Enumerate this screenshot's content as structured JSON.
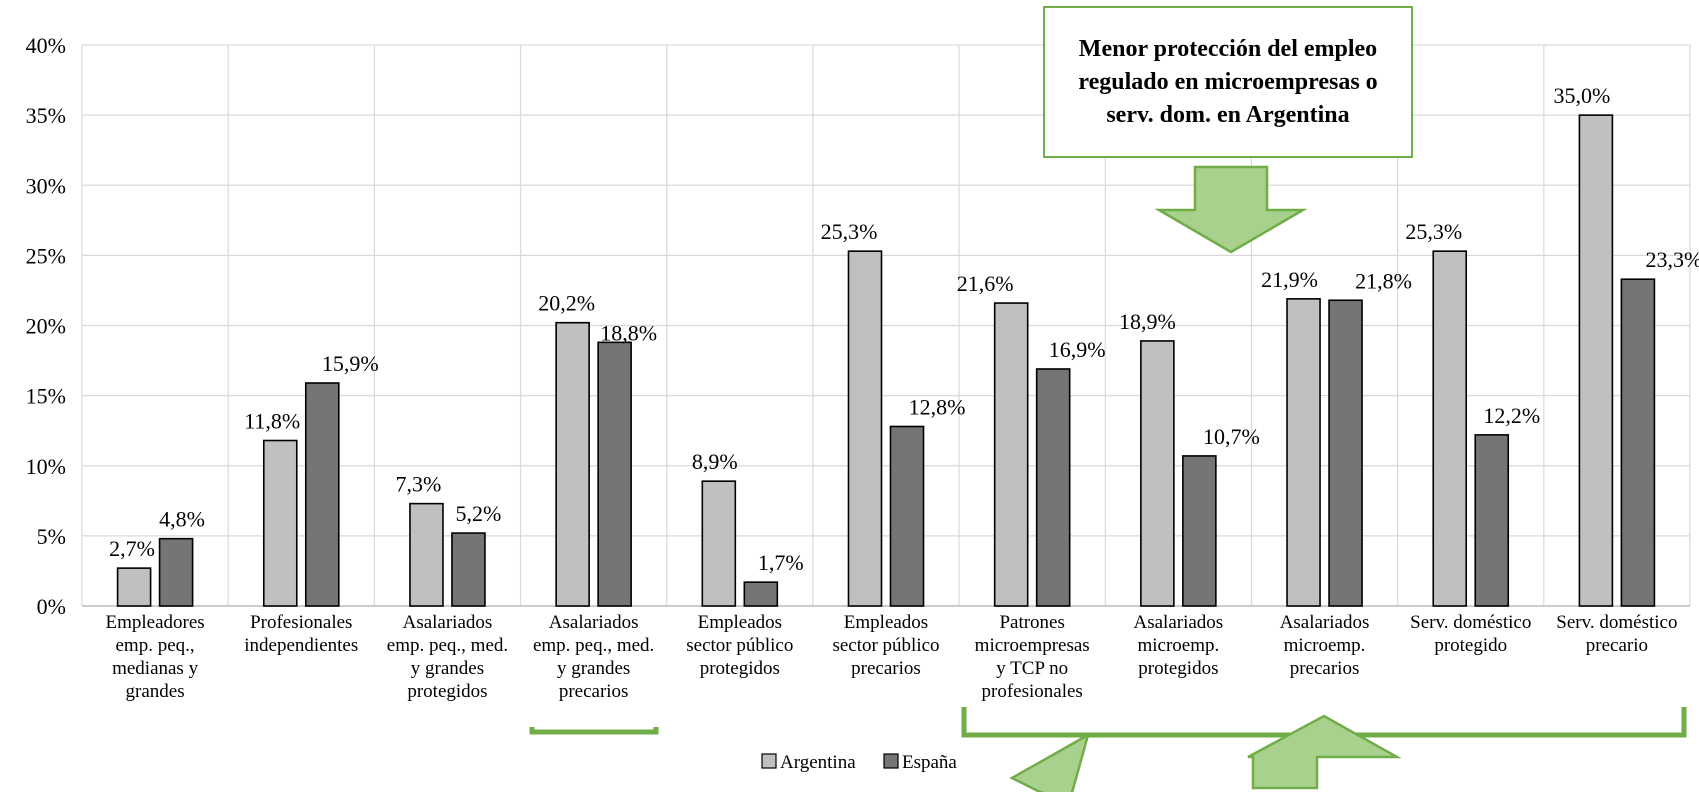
{
  "chart_data": {
    "type": "bar",
    "title": "",
    "xlabel": "",
    "ylabel": "",
    "ylim": [
      0,
      40
    ],
    "y_ticks": [
      "0%",
      "5%",
      "10%",
      "15%",
      "20%",
      "25%",
      "30%",
      "35%",
      "40%"
    ],
    "grid": true,
    "legend_position": "bottom",
    "categories": [
      [
        "Empleadores",
        "emp. peq.,",
        "medianas y",
        "grandes"
      ],
      [
        "Profesionales",
        "independientes"
      ],
      [
        "Asalariados",
        "emp. peq., med.",
        "y grandes",
        "protegidos"
      ],
      [
        "Asalariados",
        "emp. peq., med.",
        "y grandes",
        "precarios"
      ],
      [
        "Empleados",
        "sector público",
        "protegidos"
      ],
      [
        "Empleados",
        "sector público",
        "precarios"
      ],
      [
        "Patrones",
        "microempresas",
        "y TCP no",
        "profesionales"
      ],
      [
        "Asalariados",
        "microemp.",
        "protegidos"
      ],
      [
        "Asalariados",
        "microemp.",
        "precarios"
      ],
      [
        "Serv. doméstico",
        "protegido"
      ],
      [
        "Serv. doméstico",
        "precario"
      ]
    ],
    "series": [
      {
        "name": "Argentina",
        "color": "#c0c0c0",
        "values": [
          2.7,
          11.8,
          7.3,
          20.2,
          8.9,
          25.3,
          21.6,
          18.9,
          21.9,
          25.3,
          35.0
        ],
        "labels": [
          "2,7%",
          "11,8%",
          "7,3%",
          "20,2%",
          "8,9%",
          "25,3%",
          "21,6%",
          "18,9%",
          "21,9%",
          "25,3%",
          "35,0%"
        ]
      },
      {
        "name": "España",
        "color": "#757575",
        "values": [
          4.8,
          15.9,
          5.2,
          18.8,
          1.7,
          12.8,
          16.9,
          10.7,
          21.8,
          12.2,
          23.3
        ],
        "labels": [
          "4,8%",
          "15,9%",
          "5,2%",
          "18,8%",
          "1,7%",
          "12,8%",
          "16,9%",
          "10,7%",
          "21,8%",
          "12,2%",
          "23,3%"
        ]
      }
    ],
    "annotation": "Menor protección del empleo regulado en microempresas o serv. dom. en Argentina",
    "accent_color": "#70ad47",
    "arrow_fill": "#a9d18e"
  }
}
